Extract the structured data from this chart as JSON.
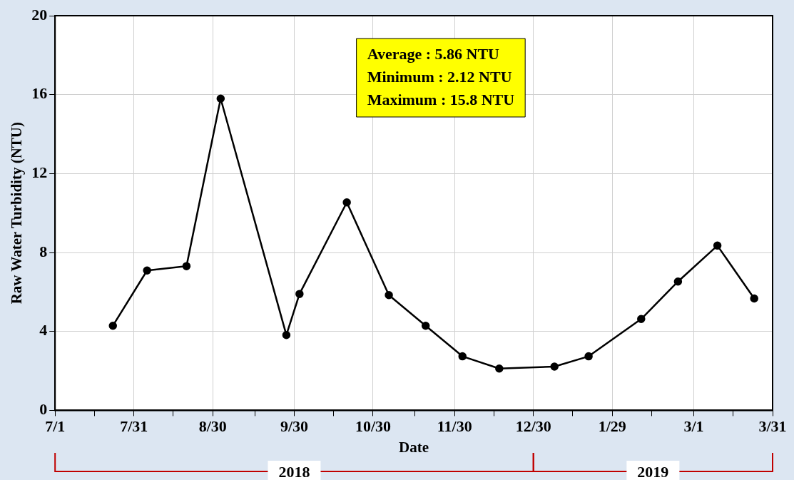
{
  "chart_data": {
    "type": "line",
    "xlabel": "Date",
    "ylabel": "Raw Water Turbidity (NTU)",
    "x": [
      "2018-07-23",
      "2018-08-05",
      "2018-08-20",
      "2018-09-02",
      "2018-09-27",
      "2018-10-02",
      "2018-10-20",
      "2018-11-05",
      "2018-11-19",
      "2018-12-03",
      "2018-12-17",
      "2019-01-07",
      "2019-01-20",
      "2019-02-09",
      "2019-02-23",
      "2019-03-10",
      "2019-03-24"
    ],
    "series": [
      {
        "color": "#000000",
        "values": [
          4.29,
          7.09,
          7.31,
          15.8,
          3.82,
          5.9,
          10.54,
          5.84,
          4.29,
          2.74,
          2.12,
          2.22,
          2.74,
          4.63,
          6.53,
          8.35,
          5.67
        ]
      }
    ],
    "xlim": [
      "2018-07-01",
      "2019-03-31"
    ],
    "xticks": [
      {
        "value": "2018-07-01",
        "label": "7/1"
      },
      {
        "value": "2018-07-16",
        "label": null
      },
      {
        "value": "2018-07-31",
        "label": "7/31"
      },
      {
        "value": "2018-08-15",
        "label": null
      },
      {
        "value": "2018-08-30",
        "label": "8/30"
      },
      {
        "value": "2018-09-15",
        "label": null
      },
      {
        "value": "2018-09-30",
        "label": "9/30"
      },
      {
        "value": "2018-10-15",
        "label": null
      },
      {
        "value": "2018-10-30",
        "label": "10/30"
      },
      {
        "value": "2018-11-15",
        "label": null
      },
      {
        "value": "2018-11-30",
        "label": "11/30"
      },
      {
        "value": "2018-12-15",
        "label": null
      },
      {
        "value": "2018-12-30",
        "label": "12/30"
      },
      {
        "value": "2019-01-14",
        "label": null
      },
      {
        "value": "2019-01-29",
        "label": "1/29"
      },
      {
        "value": "2019-02-13",
        "label": null
      },
      {
        "value": "2019-03-01",
        "label": "3/1"
      },
      {
        "value": "2019-03-16",
        "label": null
      },
      {
        "value": "2019-03-31",
        "label": "3/31"
      }
    ],
    "ylim": [
      0,
      20
    ],
    "yticks": [
      0,
      4,
      8,
      12,
      16,
      20
    ],
    "annotations": [
      "Average : 5.86 NTU",
      "Minimum : 2.12 NTU",
      "Maximum : 15.8 NTU",
      "2018",
      "2019"
    ],
    "grid": true,
    "legend": false,
    "marker": "circle",
    "line_style": "solid"
  }
}
